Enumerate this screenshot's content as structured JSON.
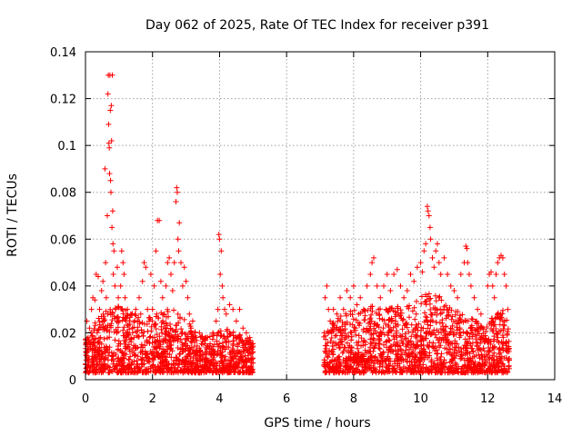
{
  "chart_data": {
    "type": "scatter",
    "title": "Day 062 of 2025, Rate Of TEC Index for receiver p391",
    "xlabel": "GPS time / hours",
    "ylabel": "ROTI / TECUs",
    "xlim": [
      0,
      14
    ],
    "ylim": [
      0,
      0.14
    ],
    "grid": true,
    "marker": "+",
    "color": "#ff0000",
    "x_ticks": [
      0,
      2,
      4,
      6,
      8,
      10,
      12,
      14
    ],
    "x_tick_labels": [
      "0",
      "2",
      "4",
      "6",
      "8",
      "10",
      "12",
      "14"
    ],
    "y_ticks": [
      0,
      0.02,
      0.04,
      0.06,
      0.08,
      0.1,
      0.12,
      0.14
    ],
    "y_tick_labels": [
      "0",
      "0.02",
      "0.04",
      "0.06",
      "0.08",
      "0.1",
      "0.12",
      "0.14"
    ],
    "series": [
      {
        "name": "p391",
        "points": [
          [
            0.02,
            0.012
          ],
          [
            0.04,
            0.025
          ],
          [
            0.06,
            0.008
          ],
          [
            0.08,
            0.018
          ],
          [
            0.1,
            0.006
          ],
          [
            0.12,
            0.022
          ],
          [
            0.15,
            0.014
          ],
          [
            0.18,
            0.03
          ],
          [
            0.2,
            0.01
          ],
          [
            0.22,
            0.035
          ],
          [
            0.25,
            0.016
          ],
          [
            0.28,
            0.034
          ],
          [
            0.3,
            0.009
          ],
          [
            0.32,
            0.045
          ],
          [
            0.35,
            0.02
          ],
          [
            0.38,
            0.044
          ],
          [
            0.4,
            0.012
          ],
          [
            0.42,
            0.03
          ],
          [
            0.45,
            0.018
          ],
          [
            0.48,
            0.038
          ],
          [
            0.5,
            0.01
          ],
          [
            0.52,
            0.042
          ],
          [
            0.55,
            0.025
          ],
          [
            0.58,
            0.09
          ],
          [
            0.6,
            0.05
          ],
          [
            0.62,
            0.035
          ],
          [
            0.65,
            0.07
          ],
          [
            0.67,
            0.122
          ],
          [
            0.68,
            0.13
          ],
          [
            0.69,
            0.109
          ],
          [
            0.7,
            0.101
          ],
          [
            0.71,
            0.099
          ],
          [
            0.72,
            0.088
          ],
          [
            0.73,
            0.13
          ],
          [
            0.74,
            0.115
          ],
          [
            0.75,
            0.085
          ],
          [
            0.76,
            0.08
          ],
          [
            0.77,
            0.117
          ],
          [
            0.78,
            0.102
          ],
          [
            0.79,
            0.065
          ],
          [
            0.8,
            0.13
          ],
          [
            0.81,
            0.072
          ],
          [
            0.82,
            0.058
          ],
          [
            0.83,
            0.045
          ],
          [
            0.85,
            0.055
          ],
          [
            0.88,
            0.04
          ],
          [
            0.9,
            0.03
          ],
          [
            0.93,
            0.02
          ],
          [
            0.95,
            0.048
          ],
          [
            0.98,
            0.035
          ],
          [
            1.0,
            0.025
          ],
          [
            1.05,
            0.04
          ],
          [
            1.08,
            0.055
          ],
          [
            1.1,
            0.03
          ],
          [
            1.12,
            0.05
          ],
          [
            1.15,
            0.045
          ],
          [
            1.18,
            0.035
          ],
          [
            1.2,
            0.02
          ],
          [
            1.25,
            0.03
          ],
          [
            1.3,
            0.015
          ],
          [
            1.35,
            0.028
          ],
          [
            1.4,
            0.022
          ],
          [
            1.45,
            0.018
          ],
          [
            1.5,
            0.03
          ],
          [
            1.55,
            0.025
          ],
          [
            1.6,
            0.035
          ],
          [
            1.65,
            0.028
          ],
          [
            1.7,
            0.042
          ],
          [
            1.75,
            0.05
          ],
          [
            1.8,
            0.048
          ],
          [
            1.85,
            0.03
          ],
          [
            1.9,
            0.025
          ],
          [
            1.95,
            0.045
          ],
          [
            2.0,
            0.03
          ],
          [
            2.05,
            0.04
          ],
          [
            2.1,
            0.055
          ],
          [
            2.15,
            0.068
          ],
          [
            2.2,
            0.068
          ],
          [
            2.25,
            0.042
          ],
          [
            2.3,
            0.035
          ],
          [
            2.35,
            0.028
          ],
          [
            2.4,
            0.04
          ],
          [
            2.45,
            0.05
          ],
          [
            2.5,
            0.052
          ],
          [
            2.55,
            0.045
          ],
          [
            2.6,
            0.038
          ],
          [
            2.65,
            0.05
          ],
          [
            2.7,
            0.076
          ],
          [
            2.72,
            0.082
          ],
          [
            2.74,
            0.08
          ],
          [
            2.76,
            0.06
          ],
          [
            2.78,
            0.055
          ],
          [
            2.8,
            0.067
          ],
          [
            2.85,
            0.05
          ],
          [
            2.9,
            0.04
          ],
          [
            2.95,
            0.048
          ],
          [
            3.0,
            0.042
          ],
          [
            3.05,
            0.035
          ],
          [
            3.1,
            0.028
          ],
          [
            3.15,
            0.022
          ],
          [
            3.2,
            0.025
          ],
          [
            3.3,
            0.018
          ],
          [
            3.4,
            0.02
          ],
          [
            3.5,
            0.015
          ],
          [
            3.6,
            0.018
          ],
          [
            3.7,
            0.012
          ],
          [
            3.8,
            0.02
          ],
          [
            3.85,
            0.015
          ],
          [
            3.9,
            0.025
          ],
          [
            3.95,
            0.03
          ],
          [
            3.98,
            0.062
          ],
          [
            4.0,
            0.06
          ],
          [
            4.02,
            0.045
          ],
          [
            4.05,
            0.055
          ],
          [
            4.08,
            0.04
          ],
          [
            4.1,
            0.035
          ],
          [
            4.15,
            0.03
          ],
          [
            4.2,
            0.028
          ],
          [
            4.3,
            0.032
          ],
          [
            4.4,
            0.03
          ],
          [
            4.5,
            0.025
          ],
          [
            4.6,
            0.03
          ],
          [
            4.7,
            0.022
          ],
          [
            4.8,
            0.02
          ],
          [
            4.9,
            0.018
          ],
          [
            4.95,
            0.015
          ],
          [
            7.12,
            0.02
          ],
          [
            7.15,
            0.035
          ],
          [
            7.2,
            0.04
          ],
          [
            7.25,
            0.03
          ],
          [
            7.3,
            0.025
          ],
          [
            7.4,
            0.03
          ],
          [
            7.5,
            0.028
          ],
          [
            7.6,
            0.035
          ],
          [
            7.7,
            0.03
          ],
          [
            7.8,
            0.038
          ],
          [
            7.9,
            0.035
          ],
          [
            8.0,
            0.04
          ],
          [
            8.1,
            0.032
          ],
          [
            8.2,
            0.035
          ],
          [
            8.3,
            0.03
          ],
          [
            8.4,
            0.04
          ],
          [
            8.5,
            0.045
          ],
          [
            8.55,
            0.05
          ],
          [
            8.6,
            0.052
          ],
          [
            8.7,
            0.04
          ],
          [
            8.8,
            0.035
          ],
          [
            8.9,
            0.04
          ],
          [
            9.0,
            0.045
          ],
          [
            9.1,
            0.038
          ],
          [
            9.2,
            0.045
          ],
          [
            9.3,
            0.047
          ],
          [
            9.4,
            0.04
          ],
          [
            9.5,
            0.035
          ],
          [
            9.6,
            0.038
          ],
          [
            9.7,
            0.045
          ],
          [
            9.8,
            0.042
          ],
          [
            9.9,
            0.048
          ],
          [
            10.0,
            0.05
          ],
          [
            10.05,
            0.046
          ],
          [
            10.1,
            0.055
          ],
          [
            10.15,
            0.058
          ],
          [
            10.2,
            0.074
          ],
          [
            10.22,
            0.072
          ],
          [
            10.25,
            0.07
          ],
          [
            10.28,
            0.065
          ],
          [
            10.3,
            0.06
          ],
          [
            10.35,
            0.052
          ],
          [
            10.4,
            0.048
          ],
          [
            10.45,
            0.055
          ],
          [
            10.5,
            0.058
          ],
          [
            10.55,
            0.05
          ],
          [
            10.6,
            0.045
          ],
          [
            10.7,
            0.052
          ],
          [
            10.8,
            0.045
          ],
          [
            10.9,
            0.04
          ],
          [
            11.0,
            0.038
          ],
          [
            11.1,
            0.035
          ],
          [
            11.2,
            0.045
          ],
          [
            11.3,
            0.05
          ],
          [
            11.35,
            0.057
          ],
          [
            11.38,
            0.056
          ],
          [
            11.4,
            0.05
          ],
          [
            11.45,
            0.045
          ],
          [
            11.5,
            0.04
          ],
          [
            11.6,
            0.035
          ],
          [
            11.7,
            0.03
          ],
          [
            11.8,
            0.028
          ],
          [
            12.0,
            0.04
          ],
          [
            12.05,
            0.045
          ],
          [
            12.1,
            0.046
          ],
          [
            12.15,
            0.04
          ],
          [
            12.2,
            0.035
          ],
          [
            12.25,
            0.045
          ],
          [
            12.3,
            0.05
          ],
          [
            12.35,
            0.052
          ],
          [
            12.4,
            0.053
          ],
          [
            12.45,
            0.052
          ],
          [
            12.5,
            0.045
          ],
          [
            12.55,
            0.04
          ],
          [
            12.6,
            0.03
          ]
        ],
        "envelope": {
          "note": "dense band of points between ~0.003 and the local upper value, sampled along GPS time",
          "segments": [
            {
              "x": [
                0.0,
                5.0
              ],
              "upper": [
                [
                  0.0,
                  0.018
                ],
                [
                  0.3,
                  0.025
                ],
                [
                  0.6,
                  0.03
                ],
                [
                  0.9,
                  0.032
                ],
                [
                  1.2,
                  0.03
                ],
                [
                  1.5,
                  0.028
                ],
                [
                  1.8,
                  0.026
                ],
                [
                  2.1,
                  0.028
                ],
                [
                  2.4,
                  0.03
                ],
                [
                  2.7,
                  0.03
                ],
                [
                  3.0,
                  0.026
                ],
                [
                  3.3,
                  0.02
                ],
                [
                  3.6,
                  0.018
                ],
                [
                  3.9,
                  0.02
                ],
                [
                  4.2,
                  0.022
                ],
                [
                  4.5,
                  0.02
                ],
                [
                  4.8,
                  0.018
                ],
                [
                  5.0,
                  0.016
                ]
              ]
            },
            {
              "x": [
                7.1,
                12.65
              ],
              "upper": [
                [
                  7.1,
                  0.02
                ],
                [
                  7.4,
                  0.025
                ],
                [
                  7.7,
                  0.028
                ],
                [
                  8.0,
                  0.03
                ],
                [
                  8.3,
                  0.03
                ],
                [
                  8.6,
                  0.032
                ],
                [
                  8.9,
                  0.03
                ],
                [
                  9.2,
                  0.032
                ],
                [
                  9.5,
                  0.03
                ],
                [
                  9.8,
                  0.034
                ],
                [
                  10.1,
                  0.036
                ],
                [
                  10.4,
                  0.038
                ],
                [
                  10.7,
                  0.034
                ],
                [
                  11.0,
                  0.03
                ],
                [
                  11.3,
                  0.028
                ],
                [
                  11.6,
                  0.026
                ],
                [
                  11.9,
                  0.022
                ],
                [
                  12.2,
                  0.028
                ],
                [
                  12.5,
                  0.03
                ],
                [
                  12.65,
                  0.025
                ]
              ]
            }
          ]
        }
      }
    ]
  }
}
